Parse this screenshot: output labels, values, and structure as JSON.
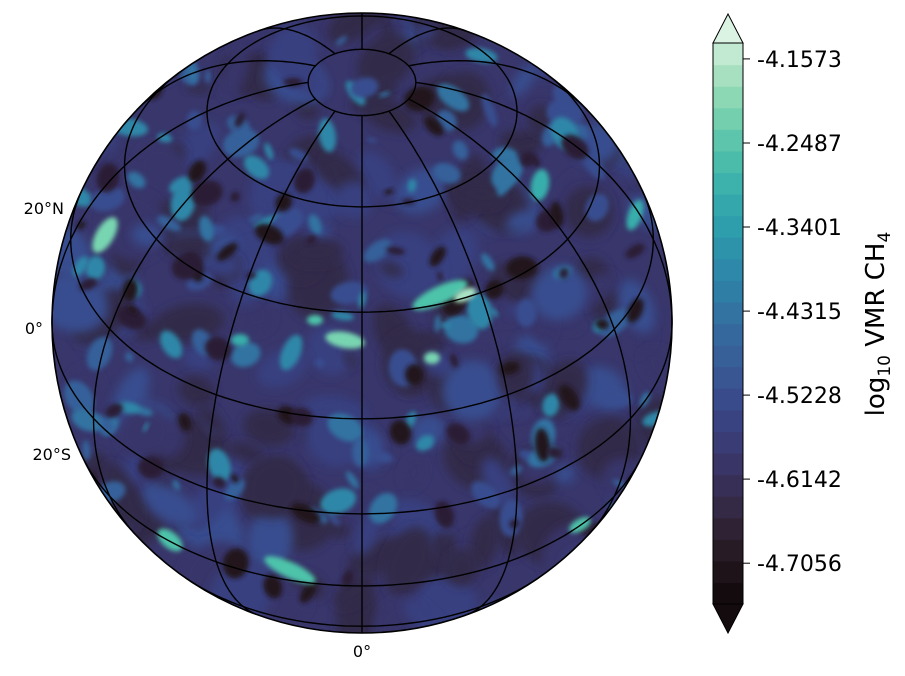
{
  "map": {
    "projection": "orthographic",
    "central_longitude": "0°",
    "latitude_labels": [
      "20°N",
      "0°",
      "20°S"
    ],
    "longitude_labels": [
      "0°"
    ],
    "field_palette": [
      "#140b0e",
      "#21171f",
      "#2b1f35",
      "#33294a",
      "#37356a",
      "#394180",
      "#384e8f",
      "#36609a",
      "#3373a2",
      "#2f87a8",
      "#2f9bac",
      "#38aeac",
      "#4dc3aa",
      "#78d5b1",
      "#a9e4c4",
      "#d6f1e0"
    ]
  },
  "colorbar": {
    "label_prefix": "log",
    "label_subscript": "10",
    "label_main": " VMR CH",
    "label_molecule_subscript": "4",
    "ticks": [
      "-4.1573",
      "-4.2487",
      "-4.3401",
      "-4.4315",
      "-4.5228",
      "-4.6142",
      "-4.7056"
    ],
    "min_value": -4.75,
    "max_value": -4.14,
    "extend": "both",
    "colors": [
      "#140b0e",
      "#1d1318",
      "#271b26",
      "#2f2234",
      "#342a45",
      "#372f56",
      "#393566",
      "#3a3c76",
      "#3a4382",
      "#3a4b8b",
      "#395592",
      "#375f98",
      "#35699d",
      "#3273a2",
      "#2f7ea6",
      "#2d88a9",
      "#2c93ab",
      "#2e9dac",
      "#34a7ad",
      "#3db1ac",
      "#4bbbaa",
      "#5cc5ab",
      "#73cfae",
      "#8cd8b5",
      "#a6e0c0",
      "#c2e9d1"
    ],
    "extend_low_color": "#140b0e",
    "extend_high_color": "#daf3e3"
  }
}
